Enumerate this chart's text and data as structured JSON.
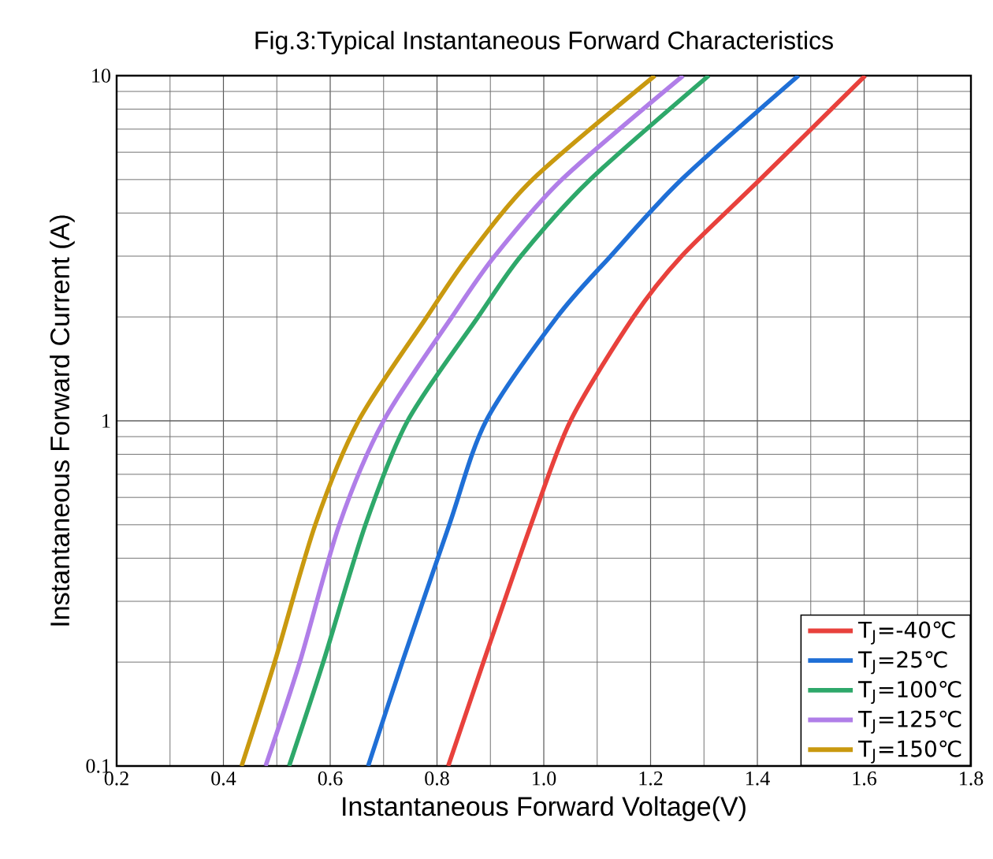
{
  "chart_data": {
    "type": "line",
    "title": "Fig.3:Typical Instantaneous Forward Characteristics",
    "xlabel": "Instantaneous Forward Voltage(V)",
    "ylabel": "Instantaneous Forward Current (A)",
    "log": "y",
    "grid": true,
    "legend": "bottom right",
    "line_style": "solid",
    "marker": "none",
    "xlim": [
      0.2,
      1.8
    ],
    "xticks": [
      0.2,
      0.4,
      0.6,
      0.8,
      {
        "value": 1.0,
        "label": "1.0"
      },
      1.2,
      1.4,
      1.6,
      1.8
    ],
    "ylim": [
      0.1,
      10
    ],
    "yticks": [
      0.1,
      1,
      10
    ],
    "series": [
      {
        "name": "T$_{J}$=-40℃",
        "color": "#e8413c",
        "x": [
          0.821,
          0.887,
          0.976,
          1.05,
          1.168,
          1.258,
          1.405,
          1.602
        ],
        "values": [
          0.1,
          0.2,
          0.5,
          1,
          2,
          3,
          5,
          10
        ]
      },
      {
        "name": "T$_{J}$=25℃",
        "color": "#1f6fd6",
        "x": [
          0.671,
          0.735,
          0.823,
          0.892,
          1.025,
          1.125,
          1.258,
          1.477
        ],
        "values": [
          0.1,
          0.2,
          0.5,
          1,
          2,
          3,
          5,
          10
        ]
      },
      {
        "name": "T$_{J}$=100℃",
        "color": "#2ea86a",
        "x": [
          0.523,
          0.587,
          0.666,
          0.745,
          0.877,
          0.957,
          1.087,
          1.309
        ],
        "values": [
          0.1,
          0.2,
          0.5,
          1,
          2,
          3,
          5,
          10
        ]
      },
      {
        "name": "T$_{J}$=125℃",
        "color": "#b07ee8",
        "x": [
          0.479,
          0.543,
          0.617,
          0.7,
          0.828,
          0.908,
          1.034,
          1.261
        ],
        "values": [
          0.1,
          0.2,
          0.5,
          1,
          2,
          3,
          5,
          10
        ]
      },
      {
        "name": "T$_{J}$=150℃",
        "color": "#c9990f",
        "x": [
          0.434,
          0.496,
          0.572,
          0.653,
          0.781,
          0.859,
          0.979,
          1.208
        ],
        "values": [
          0.1,
          0.2,
          0.5,
          1,
          2,
          3,
          5,
          10
        ]
      }
    ]
  }
}
